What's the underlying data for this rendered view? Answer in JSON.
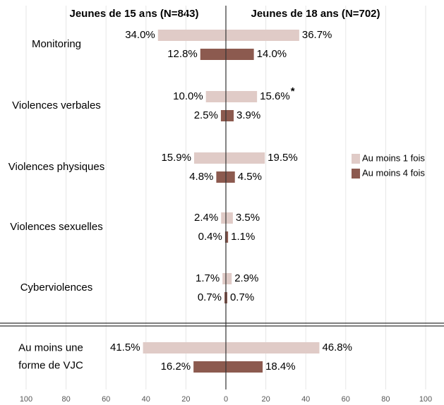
{
  "chart_data": {
    "type": "butterfly",
    "groups": [
      "Jeunes de 15 ans (N=843)",
      "Jeunes de 18 ans (N=702)"
    ],
    "categories": [
      "Monitoring",
      "Violences verbales",
      "Violences physiques",
      "Violences sexuelles",
      "Cyberviolences",
      "Au moins une forme de VJC"
    ],
    "series": [
      {
        "name": "Au moins 1 fois",
        "color": "#e0cbc7",
        "values_left": [
          34.0,
          10.0,
          15.9,
          2.4,
          1.7,
          41.5
        ],
        "value_labels_left": [
          "34.0%",
          "10.0%",
          "15.9%",
          "2.4%",
          "1.7%",
          "41.5%"
        ],
        "values_right": [
          36.7,
          15.6,
          19.5,
          3.5,
          2.9,
          46.8
        ],
        "value_labels_right": [
          "36.7%",
          "15.6%",
          "19.5%",
          "3.5%",
          "2.9%",
          "46.8%"
        ]
      },
      {
        "name": "Au moins 4 fois",
        "color": "#8c5a4f",
        "values_left": [
          12.8,
          2.5,
          4.8,
          0.4,
          0.7,
          16.2
        ],
        "value_labels_left": [
          "12.8%",
          "2.5%",
          "4.8%",
          "0.4%",
          "0.7%",
          "16.2%"
        ],
        "values_right": [
          14.0,
          3.9,
          4.5,
          1.1,
          0.7,
          18.4
        ],
        "value_labels_right": [
          "14.0%",
          "3.9%",
          "4.5%",
          "1.1%",
          "0.7%",
          "18.4%"
        ]
      }
    ],
    "annotation": "*",
    "xlim": [
      0,
      100
    ],
    "xticks": [
      0,
      20,
      40,
      60,
      80,
      100
    ],
    "grid": true,
    "legend": "right"
  }
}
